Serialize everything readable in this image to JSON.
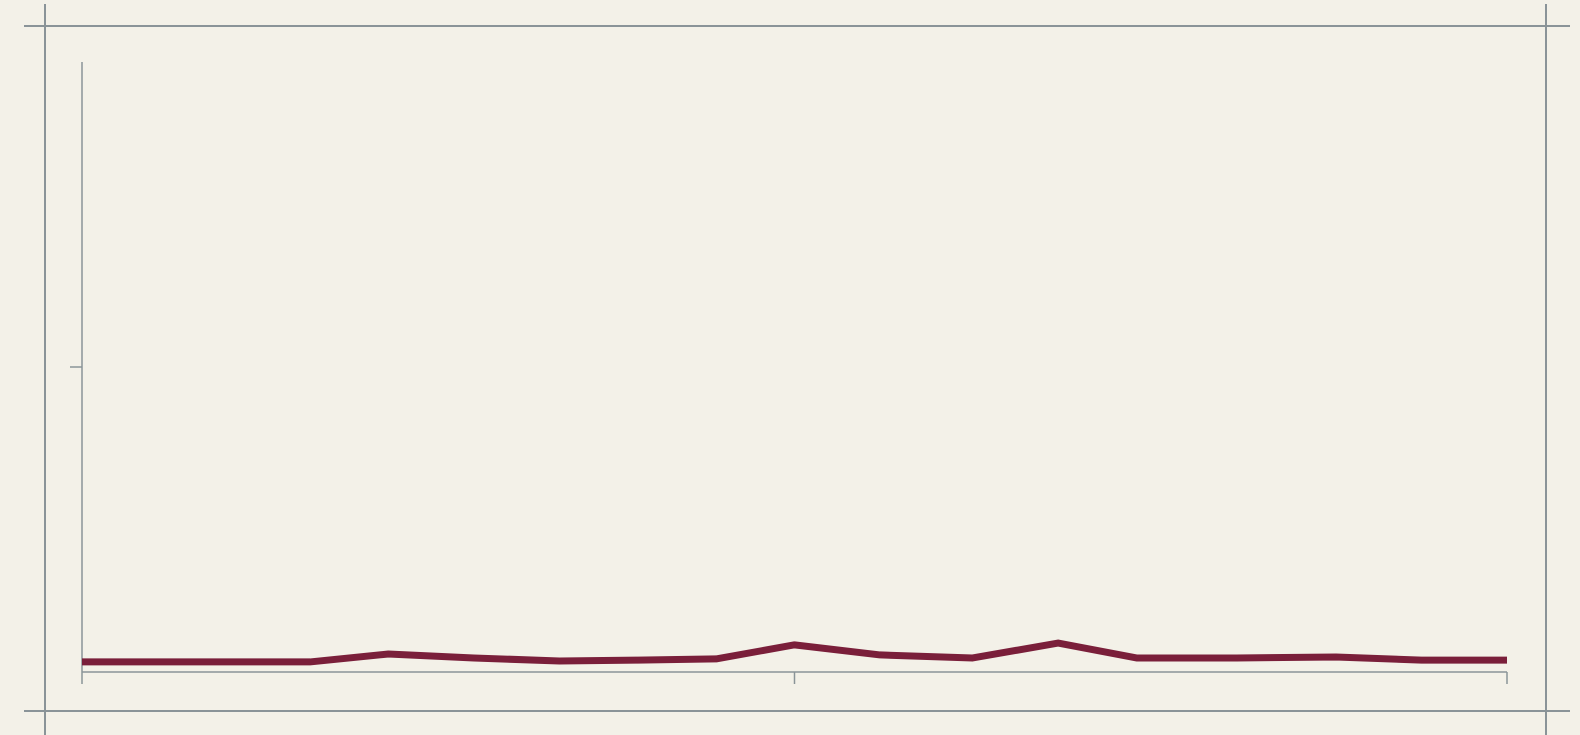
{
  "chart_data": {
    "type": "line",
    "x": [
      0,
      3.2,
      4.3,
      5.5,
      6.7,
      7.8,
      8.9,
      10,
      11.2,
      12.5,
      13.7,
      14.8,
      16.2,
      17.6,
      18.8,
      20
    ],
    "values": [
      0.033,
      0.033,
      0.059,
      0.046,
      0.036,
      0.039,
      0.043,
      0.089,
      0.056,
      0.046,
      0.095,
      0.046,
      0.046,
      0.049,
      0.039,
      0.039
    ],
    "color": "#7a1f3a",
    "xlim": [
      0,
      20
    ],
    "xticks": [
      0,
      10,
      20
    ],
    "ylim": [
      0,
      2
    ],
    "yticks": [
      1
    ],
    "grid": false
  }
}
